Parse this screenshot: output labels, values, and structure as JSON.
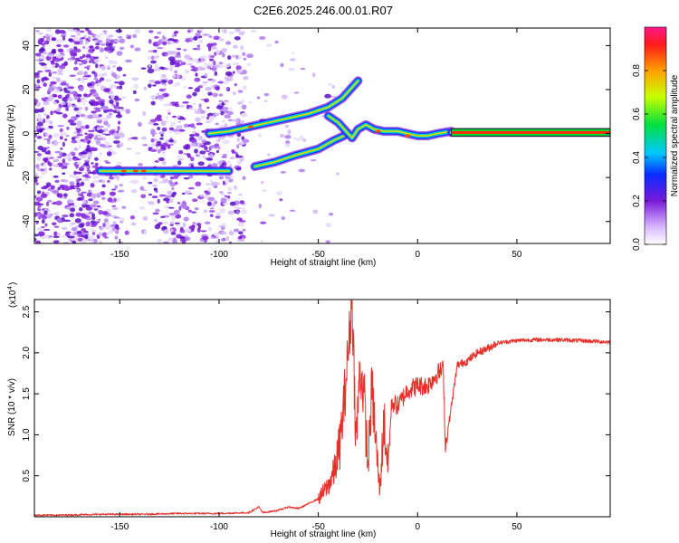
{
  "title": "C2E6.2025.246.00.01.R07",
  "colors": {
    "snr_line": "#e8302a",
    "axis": "#000000",
    "scatter": "#7a1ad8",
    "track_core": "#ff2a00"
  },
  "chart_data": [
    {
      "type": "heatmap",
      "name": "spectrogram",
      "xlabel": "Height of straight line (km)",
      "ylabel": "Frequency (Hz)",
      "xlim": [
        -193,
        97
      ],
      "ylim": [
        -50,
        48
      ],
      "x_ticks": [
        -150,
        -100,
        -50,
        0,
        50
      ],
      "y_ticks": [
        -40,
        -20,
        0,
        20,
        40
      ],
      "colorbar": {
        "label": "Normalized spectral amplitude",
        "ticks": [
          "0.0",
          "0.2",
          "0.4",
          "0.6",
          "0.8"
        ],
        "tick_values": [
          0.0,
          0.2,
          0.4,
          0.6,
          0.8
        ],
        "range": [
          0,
          1
        ]
      },
      "tracks": [
        {
          "name": "low-band",
          "points": [
            [
              -160,
              -17
            ],
            [
              -150,
              -17
            ],
            [
              -140,
              -17
            ],
            [
              -133,
              -17
            ],
            [
              -125,
              -17
            ],
            [
              -115,
              -17
            ],
            [
              -105,
              -17
            ],
            [
              -95,
              -17
            ]
          ]
        },
        {
          "name": "rising-upper",
          "points": [
            [
              -105,
              0
            ],
            [
              -95,
              1
            ],
            [
              -85,
              3
            ],
            [
              -70,
              6
            ],
            [
              -55,
              9
            ],
            [
              -45,
              12
            ],
            [
              -38,
              16
            ],
            [
              -33,
              21
            ],
            [
              -30,
              24
            ]
          ]
        },
        {
          "name": "rising-lower",
          "points": [
            [
              -82,
              -15
            ],
            [
              -72,
              -13
            ],
            [
              -62,
              -10
            ],
            [
              -50,
              -7
            ],
            [
              -42,
              -3
            ],
            [
              -37,
              -1
            ]
          ]
        },
        {
          "name": "merging",
          "points": [
            [
              -45,
              8
            ],
            [
              -40,
              5
            ],
            [
              -36,
              1
            ],
            [
              -33,
              -2
            ],
            [
              -30,
              2
            ],
            [
              -26,
              4
            ],
            [
              -22,
              2
            ],
            [
              -17,
              1
            ],
            [
              -10,
              1
            ],
            [
              -5,
              0
            ],
            [
              0,
              -1
            ],
            [
              5,
              -1
            ],
            [
              10,
              0
            ],
            [
              17,
              1
            ]
          ]
        },
        {
          "name": "constant",
          "points": [
            [
              17,
              0.5
            ],
            [
              97,
              0.5
            ]
          ]
        }
      ]
    },
    {
      "type": "line",
      "name": "snr",
      "xlabel": "Height of straight line (km)",
      "ylabel": "SNR (10 * v/v)",
      "y_multiplier_label": "(x10",
      "y_multiplier_exp": "4",
      "xlim": [
        -193,
        97
      ],
      "ylim": [
        0,
        2.65
      ],
      "x_ticks": [
        -150,
        -100,
        -50,
        0,
        50
      ],
      "y_ticks": [
        0.5,
        1.0,
        1.5,
        2.0,
        2.5
      ],
      "y_tick_labels": [
        "0.5",
        "1.0",
        "1.5",
        "2.0",
        "2.5"
      ],
      "series": [
        {
          "name": "SNR",
          "x": [
            -193,
            -180,
            -160,
            -140,
            -120,
            -100,
            -85,
            -80,
            -78,
            -75,
            -70,
            -65,
            -60,
            -55,
            -50,
            -45,
            -42,
            -39,
            -37,
            -35,
            -33,
            -31,
            -29,
            -27,
            -25,
            -23,
            -21,
            -19,
            -17,
            -15,
            -13,
            -10,
            -5,
            0,
            5,
            10,
            13,
            14,
            20,
            25,
            30,
            35,
            40,
            50,
            60,
            70,
            80,
            90,
            97
          ],
          "y": [
            0.02,
            0.02,
            0.03,
            0.03,
            0.04,
            0.04,
            0.05,
            0.12,
            0.05,
            0.06,
            0.08,
            0.12,
            0.1,
            0.16,
            0.22,
            0.38,
            0.55,
            0.9,
            1.4,
            2.0,
            2.65,
            0.9,
            1.8,
            1.5,
            0.6,
            1.6,
            0.9,
            0.3,
            1.2,
            0.6,
            1.4,
            1.35,
            1.55,
            1.6,
            1.6,
            1.75,
            1.8,
            0.85,
            1.85,
            1.9,
            2.0,
            2.05,
            2.12,
            2.15,
            2.16,
            2.16,
            2.15,
            2.14,
            2.13
          ]
        }
      ]
    }
  ]
}
